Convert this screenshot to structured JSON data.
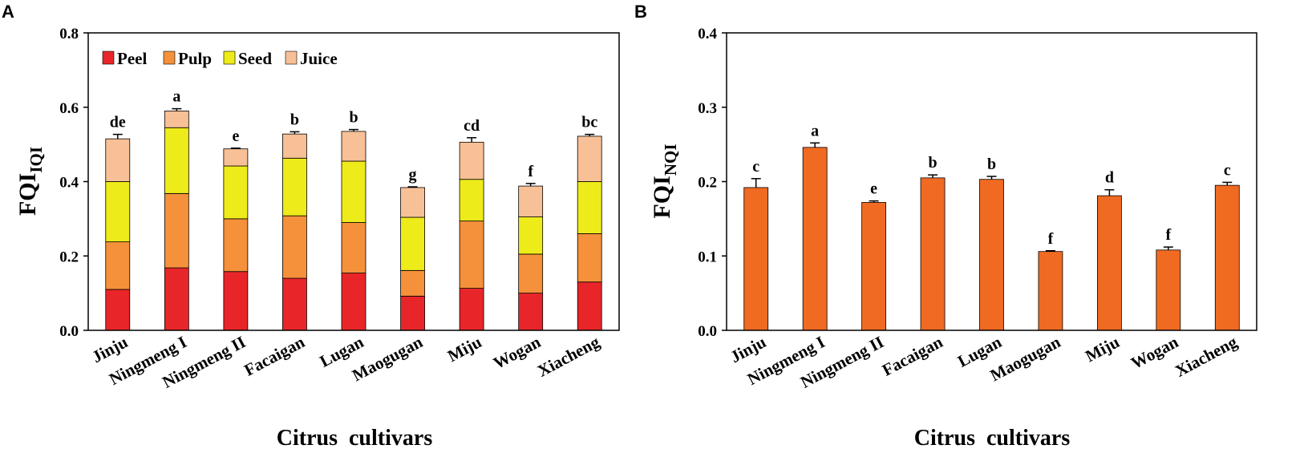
{
  "colors": {
    "Peel": "#e8262a",
    "Pulp": "#f5913a",
    "Seed": "#eeeb1a",
    "Juice": "#f8c096",
    "bar_b": "#f06a22"
  },
  "chart_data": [
    {
      "panel": "A",
      "type": "bar",
      "stacked": true,
      "categories": [
        "Jinju",
        "Ningmeng I",
        "Ningmeng II",
        "Facaigan",
        "Lugan",
        "Maogugan",
        "Miju",
        "Wogan",
        "Xiacheng"
      ],
      "series": [
        {
          "name": "Peel",
          "values": [
            0.11,
            0.168,
            0.158,
            0.14,
            0.154,
            0.092,
            0.113,
            0.1,
            0.13
          ]
        },
        {
          "name": "Pulp",
          "values": [
            0.128,
            0.2,
            0.142,
            0.168,
            0.136,
            0.069,
            0.181,
            0.105,
            0.13
          ]
        },
        {
          "name": "Seed",
          "values": [
            0.162,
            0.177,
            0.142,
            0.155,
            0.165,
            0.143,
            0.112,
            0.1,
            0.14
          ]
        },
        {
          "name": "Juice",
          "values": [
            0.115,
            0.045,
            0.046,
            0.065,
            0.08,
            0.08,
            0.1,
            0.083,
            0.122
          ]
        }
      ],
      "error": [
        0.012,
        0.006,
        0.002,
        0.006,
        0.005,
        0.002,
        0.012,
        0.007,
        0.005
      ],
      "significance": [
        "de",
        "a",
        "e",
        "b",
        "b",
        "g",
        "cd",
        "f",
        "bc"
      ],
      "xlabel": "Citrus  cultivars",
      "ylabel": "FQI",
      "ylabel_sub": "IQI",
      "ylim": [
        0,
        0.8
      ],
      "yticks": [
        "0.0",
        "0.2",
        "0.4",
        "0.6",
        "0.8"
      ],
      "legend": [
        "Peel",
        "Pulp",
        "Seed",
        "Juice"
      ],
      "legend_position": "top-left"
    },
    {
      "panel": "B",
      "type": "bar",
      "categories": [
        "Jinju",
        "Ningmeng I",
        "Ningmeng II",
        "Facaigan",
        "Lugan",
        "Maogugan",
        "Miju",
        "Wogan",
        "Xiacheng"
      ],
      "values": [
        0.192,
        0.246,
        0.172,
        0.205,
        0.203,
        0.106,
        0.181,
        0.108,
        0.195
      ],
      "error": [
        0.012,
        0.006,
        0.002,
        0.004,
        0.004,
        0.001,
        0.008,
        0.004,
        0.004
      ],
      "significance": [
        "c",
        "a",
        "e",
        "b",
        "b",
        "f",
        "d",
        "f",
        "c"
      ],
      "xlabel": "Citrus  cultivars",
      "ylabel": "FQI",
      "ylabel_sub": "NQI",
      "ylim": [
        0,
        0.4
      ],
      "yticks": [
        "0.0",
        "0.1",
        "0.2",
        "0.3",
        "0.4"
      ]
    }
  ]
}
